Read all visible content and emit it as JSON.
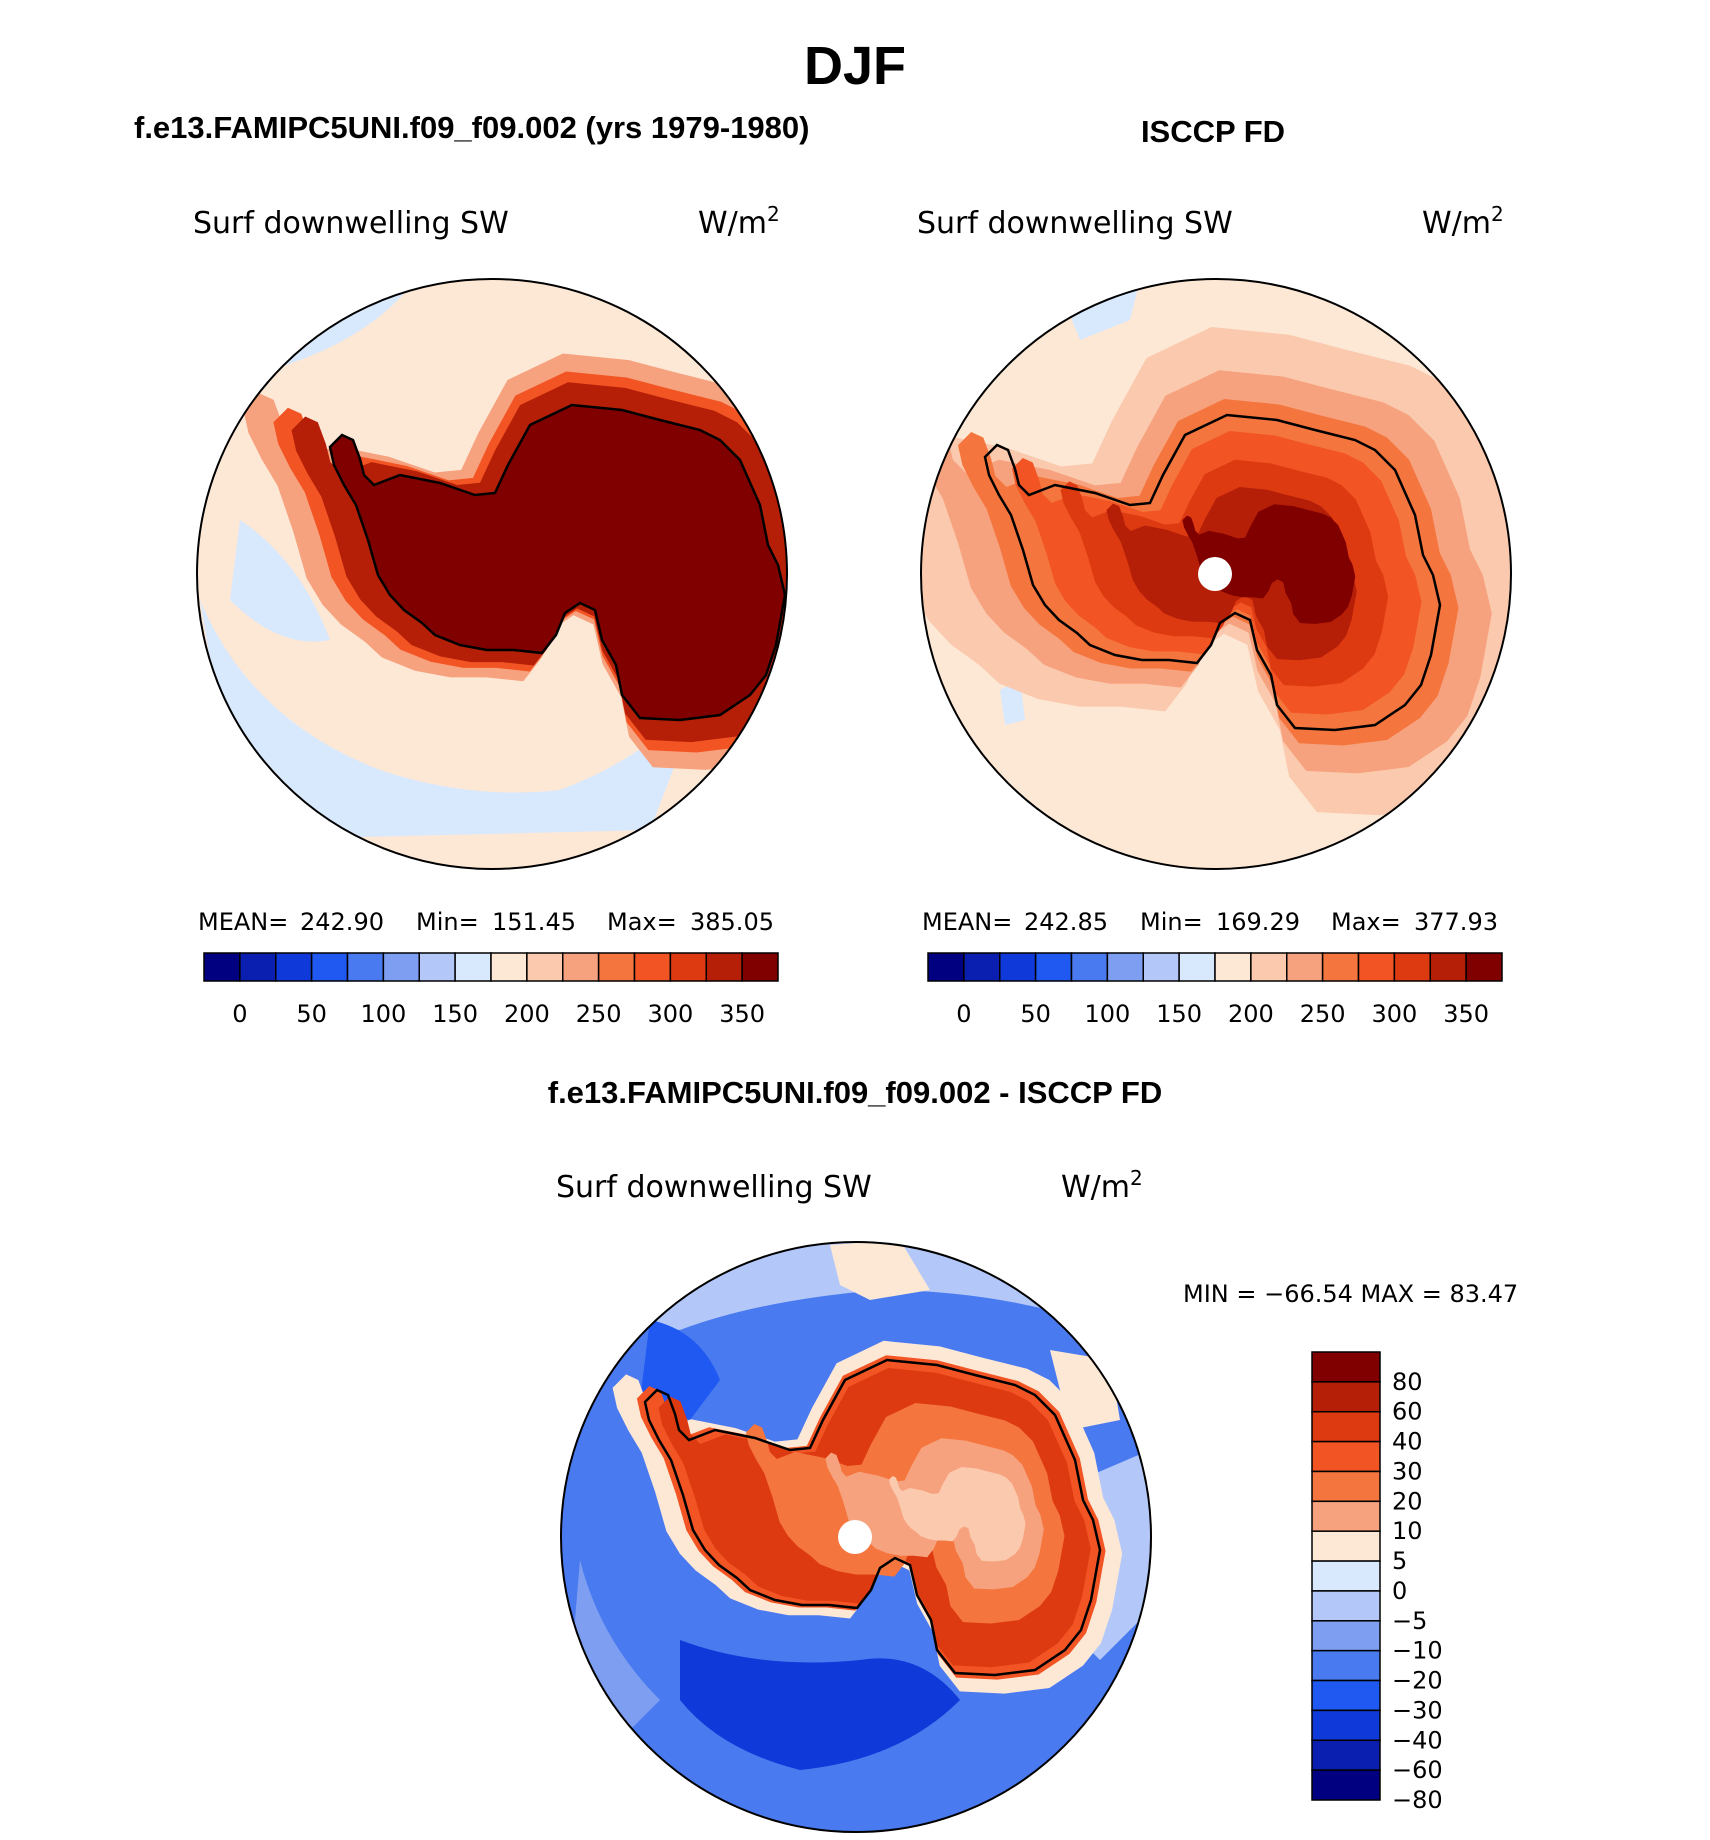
{
  "title": "DJF",
  "colors": {
    "abs_scale": [
      "#000080",
      "#0a1fb0",
      "#0f39d8",
      "#1f59f2",
      "#4a7aef",
      "#7e9ff1",
      "#b3c8f8",
      "#d8e8fd",
      "#fde8d6",
      "#fbc9ad",
      "#f7a27e",
      "#f4763e",
      "#f25424",
      "#de3a12",
      "#b51f07",
      "#800000"
    ],
    "diff_scale": [
      "#800000",
      "#b51f07",
      "#de3a12",
      "#f25424",
      "#f4763e",
      "#f7a27e",
      "#fde8d6",
      "#d8e8fd",
      "#b3c8f8",
      "#7e9ff1",
      "#4a7aef",
      "#1f59f2",
      "#0f39d8",
      "#0a1fb0",
      "#000080"
    ]
  },
  "panels": {
    "model": {
      "heading": "f.e13.FAMIPC5UNI.f09_f09.002 (yrs 1979-1980)",
      "variable": "Surf  downwelling  SW",
      "units": "W/m",
      "units_sup": "2",
      "stats": {
        "mean_label": "MEAN=",
        "mean": "242.90",
        "min_label": "Min=",
        "min": "151.45",
        "max_label": "Max=",
        "max": "385.05"
      }
    },
    "obs": {
      "heading": "ISCCP FD",
      "variable": "Surf  downwelling  SW",
      "units": "W/m",
      "units_sup": "2",
      "stats": {
        "mean_label": "MEAN=",
        "mean": "242.85",
        "min_label": "Min=",
        "min": "169.29",
        "max_label": "Max=",
        "max": "377.93"
      }
    },
    "diff": {
      "heading": "f.e13.FAMIPC5UNI.f09_f09.002 - ISCCP FD",
      "variable": "Surf  downwelling  SW",
      "units": "W/m",
      "units_sup": "2",
      "minmax": "MIN  =  −66.54  MAX  =    83.47"
    }
  },
  "chart_data": [
    {
      "type": "heatmap",
      "title": "f.e13.FAMIPC5UNI.f09_f09.002 (yrs 1979-1980)",
      "variable": "Surf downwelling SW",
      "units": "W/m2",
      "projection": "south polar stereographic",
      "stats": {
        "mean": 242.9,
        "min": 151.45,
        "max": 385.05
      },
      "colorbar_ticks": [
        "0",
        "50",
        "100",
        "150",
        "200",
        "250",
        "300",
        "350"
      ],
      "region_levels": {
        "southern_ocean": 175,
        "coastal": 260,
        "antarctic_interior": 385
      }
    },
    {
      "type": "heatmap",
      "title": "ISCCP FD",
      "variable": "Surf downwelling SW",
      "units": "W/m2",
      "projection": "south polar stereographic",
      "stats": {
        "mean": 242.85,
        "min": 169.29,
        "max": 377.93
      },
      "colorbar_ticks": [
        "0",
        "50",
        "100",
        "150",
        "200",
        "250",
        "300",
        "350"
      ],
      "region_levels": {
        "southern_ocean": 210,
        "coastal": 275,
        "antarctic_interior": 360
      }
    },
    {
      "type": "heatmap",
      "title": "f.e13.FAMIPC5UNI.f09_f09.002 - ISCCP FD",
      "variable": "Surf downwelling SW",
      "units": "W/m2",
      "projection": "south polar stereographic",
      "stats": {
        "min": -66.54,
        "max": 83.47
      },
      "colorbar_ticks": [
        "80",
        "60",
        "40",
        "30",
        "20",
        "10",
        "5",
        "0",
        "−5",
        "−10",
        "−20",
        "−30",
        "−40",
        "−60",
        "−80"
      ],
      "region_levels": {
        "southern_ocean": -25,
        "coastal": 35,
        "antarctic_interior": 20
      }
    }
  ]
}
